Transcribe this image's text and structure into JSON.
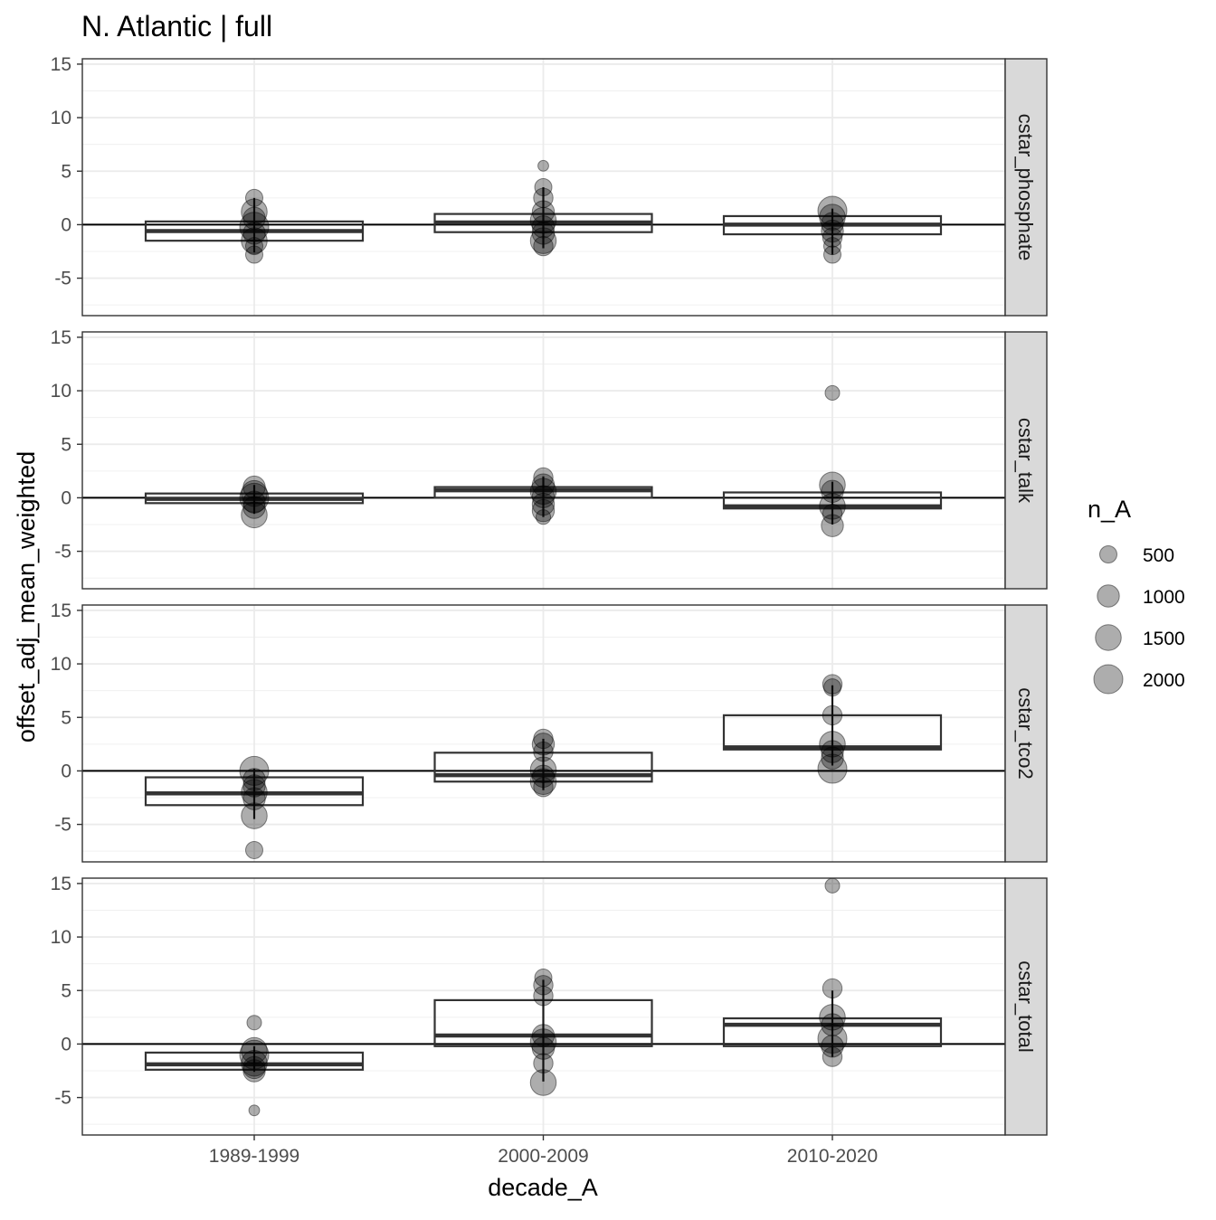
{
  "chart_data": {
    "type": "boxplot",
    "title": "N. Atlantic | full",
    "xlabel": "decade_A",
    "ylabel": "offset_adj_mean_weighted",
    "categories": [
      "1989-1999",
      "2000-2009",
      "2010-2020"
    ],
    "ylim": [
      -8.5,
      15.5
    ],
    "yticks": [
      -5,
      0,
      5,
      10,
      15
    ],
    "hline": 0,
    "legend": {
      "title": "n_A",
      "placement": "right",
      "entries": [
        {
          "label": "500",
          "value": 500
        },
        {
          "label": "1000",
          "value": 1000
        },
        {
          "label": "1500",
          "value": 1500
        },
        {
          "label": "2000",
          "value": 2000
        }
      ]
    },
    "panels": [
      {
        "strip": "cstar_phosphate",
        "boxes": [
          {
            "category": "1989-1999",
            "q1": -1.5,
            "median": -0.6,
            "q3": 0.3,
            "whisker_low": -2.6,
            "whisker_high": 2.5
          },
          {
            "category": "2000-2009",
            "q1": -0.7,
            "median": 0.2,
            "q3": 1.0,
            "whisker_low": -2.2,
            "whisker_high": 3.5
          },
          {
            "category": "2010-2020",
            "q1": -0.9,
            "median": 0.0,
            "q3": 0.8,
            "whisker_low": -2.8,
            "whisker_high": 1.5
          }
        ],
        "points": [
          {
            "category": "1989-1999",
            "y": 2.5,
            "n": 500
          },
          {
            "category": "1989-1999",
            "y": 1.2,
            "n": 1500
          },
          {
            "category": "1989-1999",
            "y": 0.6,
            "n": 1000
          },
          {
            "category": "1989-1999",
            "y": -0.2,
            "n": 2000
          },
          {
            "category": "1989-1999",
            "y": -0.8,
            "n": 1000
          },
          {
            "category": "1989-1999",
            "y": -1.5,
            "n": 1500
          },
          {
            "category": "1989-1999",
            "y": -2.0,
            "n": 500
          },
          {
            "category": "1989-1999",
            "y": -2.8,
            "n": 500
          },
          {
            "category": "2000-2009",
            "y": 5.5,
            "n": 100
          },
          {
            "category": "2000-2009",
            "y": 3.5,
            "n": 500
          },
          {
            "category": "2000-2009",
            "y": 2.5,
            "n": 700
          },
          {
            "category": "2000-2009",
            "y": 1.2,
            "n": 1000
          },
          {
            "category": "2000-2009",
            "y": 0.4,
            "n": 1500
          },
          {
            "category": "2000-2009",
            "y": -0.2,
            "n": 1000
          },
          {
            "category": "2000-2009",
            "y": -0.8,
            "n": 1000
          },
          {
            "category": "2000-2009",
            "y": -1.5,
            "n": 1500
          },
          {
            "category": "2000-2009",
            "y": -2.0,
            "n": 700
          },
          {
            "category": "2010-2020",
            "y": 1.3,
            "n": 2000
          },
          {
            "category": "2010-2020",
            "y": 0.7,
            "n": 1500
          },
          {
            "category": "2010-2020",
            "y": 0.1,
            "n": 1000
          },
          {
            "category": "2010-2020",
            "y": -0.6,
            "n": 1000
          },
          {
            "category": "2010-2020",
            "y": -1.2,
            "n": 700
          },
          {
            "category": "2010-2020",
            "y": -2.0,
            "n": 500
          },
          {
            "category": "2010-2020",
            "y": -2.8,
            "n": 500
          }
        ]
      },
      {
        "strip": "cstar_talk",
        "boxes": [
          {
            "category": "1989-1999",
            "q1": -0.5,
            "median": -0.1,
            "q3": 0.4,
            "whisker_low": -1.5,
            "whisker_high": 1.2
          },
          {
            "category": "2000-2009",
            "q1": 0.0,
            "median": 0.7,
            "q3": 1.0,
            "whisker_low": -1.8,
            "whisker_high": 2.0
          },
          {
            "category": "2010-2020",
            "q1": -1.0,
            "median": -0.8,
            "q3": 0.5,
            "whisker_low": -2.5,
            "whisker_high": 1.5
          }
        ],
        "points": [
          {
            "category": "1989-1999",
            "y": 1.0,
            "n": 1000
          },
          {
            "category": "1989-1999",
            "y": 0.4,
            "n": 1500
          },
          {
            "category": "1989-1999",
            "y": 0.0,
            "n": 2000
          },
          {
            "category": "1989-1999",
            "y": -0.4,
            "n": 1000
          },
          {
            "category": "1989-1999",
            "y": -0.9,
            "n": 1000
          },
          {
            "category": "1989-1999",
            "y": -1.6,
            "n": 1500
          },
          {
            "category": "2000-2009",
            "y": 1.9,
            "n": 700
          },
          {
            "category": "2000-2009",
            "y": 1.2,
            "n": 1000
          },
          {
            "category": "2000-2009",
            "y": 0.6,
            "n": 1500
          },
          {
            "category": "2000-2009",
            "y": 0.1,
            "n": 1000
          },
          {
            "category": "2000-2009",
            "y": -0.6,
            "n": 1000
          },
          {
            "category": "2000-2009",
            "y": -1.2,
            "n": 1000
          },
          {
            "category": "2000-2009",
            "y": -1.8,
            "n": 300
          },
          {
            "category": "2010-2020",
            "y": 9.8,
            "n": 300
          },
          {
            "category": "2010-2020",
            "y": 1.2,
            "n": 1500
          },
          {
            "category": "2010-2020",
            "y": 0.6,
            "n": 1000
          },
          {
            "category": "2010-2020",
            "y": -0.8,
            "n": 1500
          },
          {
            "category": "2010-2020",
            "y": -1.5,
            "n": 700
          },
          {
            "category": "2010-2020",
            "y": -2.6,
            "n": 1000
          }
        ]
      },
      {
        "strip": "cstar_tco2",
        "boxes": [
          {
            "category": "1989-1999",
            "q1": -3.2,
            "median": -2.1,
            "q3": -0.6,
            "whisker_low": -4.5,
            "whisker_high": 0.2
          },
          {
            "category": "2000-2009",
            "q1": -1.0,
            "median": -0.4,
            "q3": 1.7,
            "whisker_low": -1.8,
            "whisker_high": 3.0
          },
          {
            "category": "2010-2020",
            "q1": 2.0,
            "median": 2.2,
            "q3": 5.2,
            "whisker_low": 0.5,
            "whisker_high": 8.0
          }
        ],
        "points": [
          {
            "category": "1989-1999",
            "y": 0.0,
            "n": 2000
          },
          {
            "category": "1989-1999",
            "y": -0.8,
            "n": 1000
          },
          {
            "category": "1989-1999",
            "y": -1.4,
            "n": 1000
          },
          {
            "category": "1989-1999",
            "y": -2.0,
            "n": 1500
          },
          {
            "category": "1989-1999",
            "y": -2.6,
            "n": 1000
          },
          {
            "category": "1989-1999",
            "y": -4.2,
            "n": 1500
          },
          {
            "category": "1989-1999",
            "y": -7.4,
            "n": 500
          },
          {
            "category": "2000-2009",
            "y": 3.0,
            "n": 700
          },
          {
            "category": "2000-2009",
            "y": 2.5,
            "n": 1000
          },
          {
            "category": "2000-2009",
            "y": 1.8,
            "n": 700
          },
          {
            "category": "2000-2009",
            "y": 0.1,
            "n": 1500
          },
          {
            "category": "2000-2009",
            "y": -0.5,
            "n": 1000
          },
          {
            "category": "2000-2009",
            "y": -1.0,
            "n": 1500
          },
          {
            "category": "2000-2009",
            "y": -1.5,
            "n": 700
          },
          {
            "category": "2010-2020",
            "y": 8.1,
            "n": 700
          },
          {
            "category": "2010-2020",
            "y": 7.8,
            "n": 500
          },
          {
            "category": "2010-2020",
            "y": 5.2,
            "n": 700
          },
          {
            "category": "2010-2020",
            "y": 2.5,
            "n": 1500
          },
          {
            "category": "2010-2020",
            "y": 1.8,
            "n": 1000
          },
          {
            "category": "2010-2020",
            "y": 1.2,
            "n": 1000
          },
          {
            "category": "2010-2020",
            "y": 0.2,
            "n": 2000
          }
        ]
      },
      {
        "strip": "cstar_total",
        "boxes": [
          {
            "category": "1989-1999",
            "q1": -2.4,
            "median": -1.9,
            "q3": -0.8,
            "whisker_low": -2.6,
            "whisker_high": -0.2
          },
          {
            "category": "2000-2009",
            "q1": -0.2,
            "median": 0.8,
            "q3": 4.1,
            "whisker_low": -3.5,
            "whisker_high": 6.0
          },
          {
            "category": "2010-2020",
            "q1": -0.2,
            "median": 1.8,
            "q3": 2.4,
            "whisker_low": -1.2,
            "whisker_high": 5.0
          }
        ],
        "points": [
          {
            "category": "1989-1999",
            "y": 2.0,
            "n": 300
          },
          {
            "category": "1989-1999",
            "y": -0.6,
            "n": 1500
          },
          {
            "category": "1989-1999",
            "y": -1.0,
            "n": 2000
          },
          {
            "category": "1989-1999",
            "y": -1.8,
            "n": 1500
          },
          {
            "category": "1989-1999",
            "y": -2.2,
            "n": 1000
          },
          {
            "category": "1989-1999",
            "y": -2.5,
            "n": 1000
          },
          {
            "category": "1989-1999",
            "y": -6.2,
            "n": 100
          },
          {
            "category": "2000-2009",
            "y": 6.2,
            "n": 500
          },
          {
            "category": "2000-2009",
            "y": 5.5,
            "n": 700
          },
          {
            "category": "2000-2009",
            "y": 4.5,
            "n": 700
          },
          {
            "category": "2000-2009",
            "y": 0.8,
            "n": 1000
          },
          {
            "category": "2000-2009",
            "y": 0.2,
            "n": 1500
          },
          {
            "category": "2000-2009",
            "y": -0.4,
            "n": 1000
          },
          {
            "category": "2000-2009",
            "y": -1.8,
            "n": 700
          },
          {
            "category": "2000-2009",
            "y": -3.6,
            "n": 1500
          },
          {
            "category": "2010-2020",
            "y": 14.8,
            "n": 300
          },
          {
            "category": "2010-2020",
            "y": 5.2,
            "n": 700
          },
          {
            "category": "2010-2020",
            "y": 2.5,
            "n": 1500
          },
          {
            "category": "2010-2020",
            "y": 1.8,
            "n": 1000
          },
          {
            "category": "2010-2020",
            "y": 0.5,
            "n": 2000
          },
          {
            "category": "2010-2020",
            "y": -0.2,
            "n": 1000
          },
          {
            "category": "2010-2020",
            "y": -1.2,
            "n": 700
          }
        ]
      }
    ]
  }
}
